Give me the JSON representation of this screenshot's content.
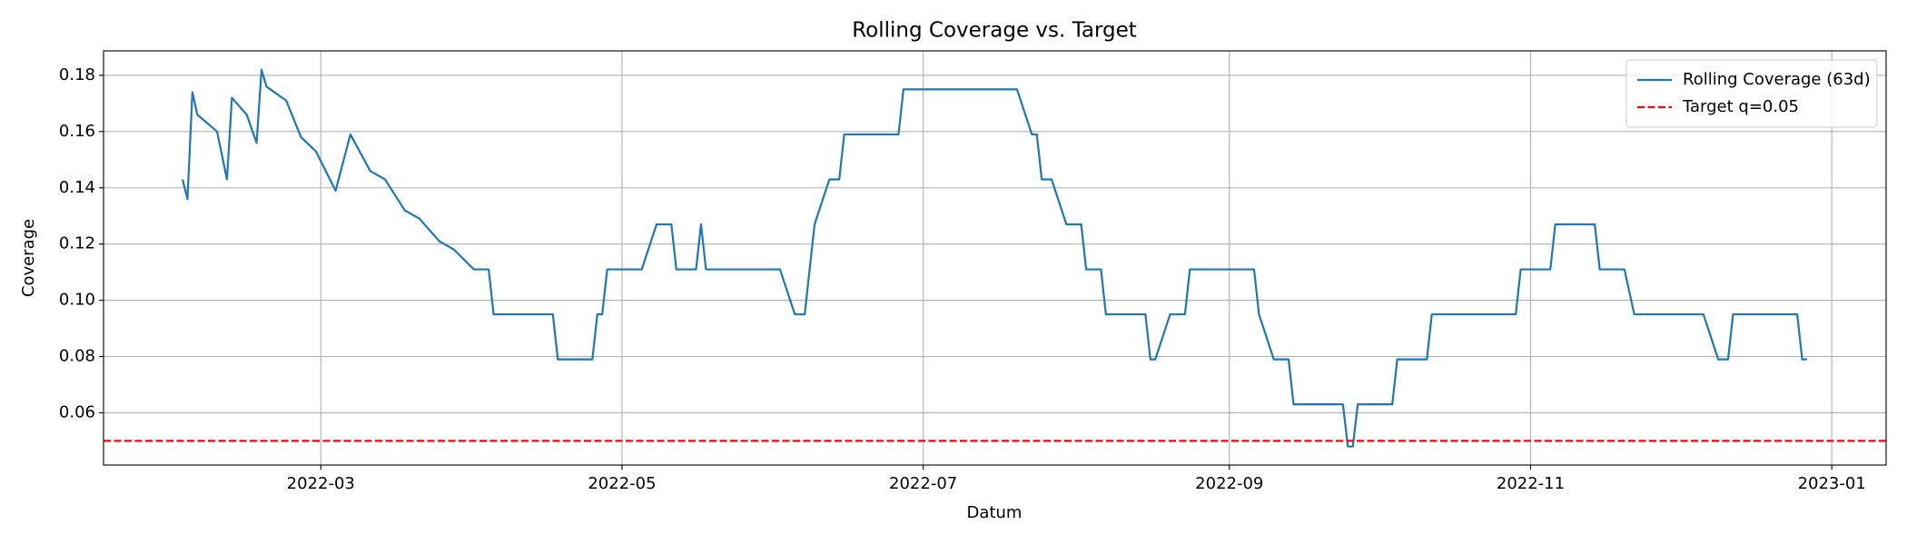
{
  "chart_data": {
    "type": "line",
    "title": "Rolling Coverage vs. Target",
    "xlabel": "Datum",
    "ylabel": "Coverage",
    "series": [
      {
        "name": "Rolling Coverage (63d)",
        "color": "#1f77b4",
        "x": [
          19024,
          19025,
          19026,
          19027,
          19031,
          19033,
          19034,
          19037,
          19039,
          19040,
          19041,
          19045,
          19048,
          19051,
          19055,
          19058,
          19062,
          19065,
          19069,
          19072,
          19076,
          19079,
          19083,
          19086,
          19087,
          19099,
          19100,
          19107,
          19108,
          19109,
          19110,
          19117,
          19120,
          19123,
          19124,
          19128,
          19129,
          19130,
          19145,
          19148,
          19150,
          19152,
          19155,
          19157,
          19158,
          19169,
          19170,
          19193,
          19196,
          19197,
          19198,
          19200,
          19203,
          19206,
          19207,
          19210,
          19211,
          19219,
          19220,
          19221,
          19224,
          19227,
          19228,
          19241,
          19242,
          19245,
          19248,
          19249,
          19259,
          19260,
          19261,
          19262,
          19269,
          19270,
          19276,
          19277,
          19294,
          19295,
          19301,
          19302,
          19310,
          19311,
          19316,
          19318,
          19332,
          19335,
          19337,
          19338,
          19351,
          19352,
          19353
        ],
        "values": [
          0.143,
          0.136,
          0.174,
          0.166,
          0.16,
          0.143,
          0.172,
          0.166,
          0.156,
          0.182,
          0.176,
          0.171,
          0.158,
          0.153,
          0.139,
          0.159,
          0.146,
          0.143,
          0.132,
          0.129,
          0.121,
          0.118,
          0.111,
          0.111,
          0.095,
          0.095,
          0.079,
          0.079,
          0.095,
          0.095,
          0.111,
          0.111,
          0.127,
          0.127,
          0.111,
          0.111,
          0.127,
          0.111,
          0.111,
          0.095,
          0.095,
          0.127,
          0.143,
          0.143,
          0.159,
          0.159,
          0.175,
          0.175,
          0.159,
          0.159,
          0.143,
          0.143,
          0.127,
          0.127,
          0.111,
          0.111,
          0.095,
          0.095,
          0.079,
          0.079,
          0.095,
          0.095,
          0.111,
          0.111,
          0.095,
          0.079,
          0.079,
          0.063,
          0.063,
          0.048,
          0.048,
          0.063,
          0.063,
          0.079,
          0.079,
          0.095,
          0.095,
          0.111,
          0.111,
          0.127,
          0.127,
          0.111,
          0.111,
          0.095,
          0.095,
          0.079,
          0.079,
          0.095,
          0.095,
          0.079,
          0.079
        ]
      }
    ],
    "reference_lines": [
      {
        "name": "Target q=0.05",
        "color": "#ff0000",
        "value": 0.05,
        "style": "dashed"
      }
    ],
    "xlim": [
      19008,
      19369
    ],
    "xticks": [
      {
        "value": 19052,
        "label": "2022-03"
      },
      {
        "value": 19113,
        "label": "2022-05"
      },
      {
        "value": 19174,
        "label": "2022-07"
      },
      {
        "value": 19236,
        "label": "2022-09"
      },
      {
        "value": 19297,
        "label": "2022-11"
      },
      {
        "value": 19358,
        "label": "2023-01"
      }
    ],
    "ylim": [
      0.0414,
      0.1887
    ],
    "yticks": [
      0.06,
      0.08,
      {
        "value": 0.1,
        "label": "0.10"
      },
      0.12,
      0.14,
      0.16,
      0.18
    ],
    "grid": true,
    "legend": "upper right"
  }
}
